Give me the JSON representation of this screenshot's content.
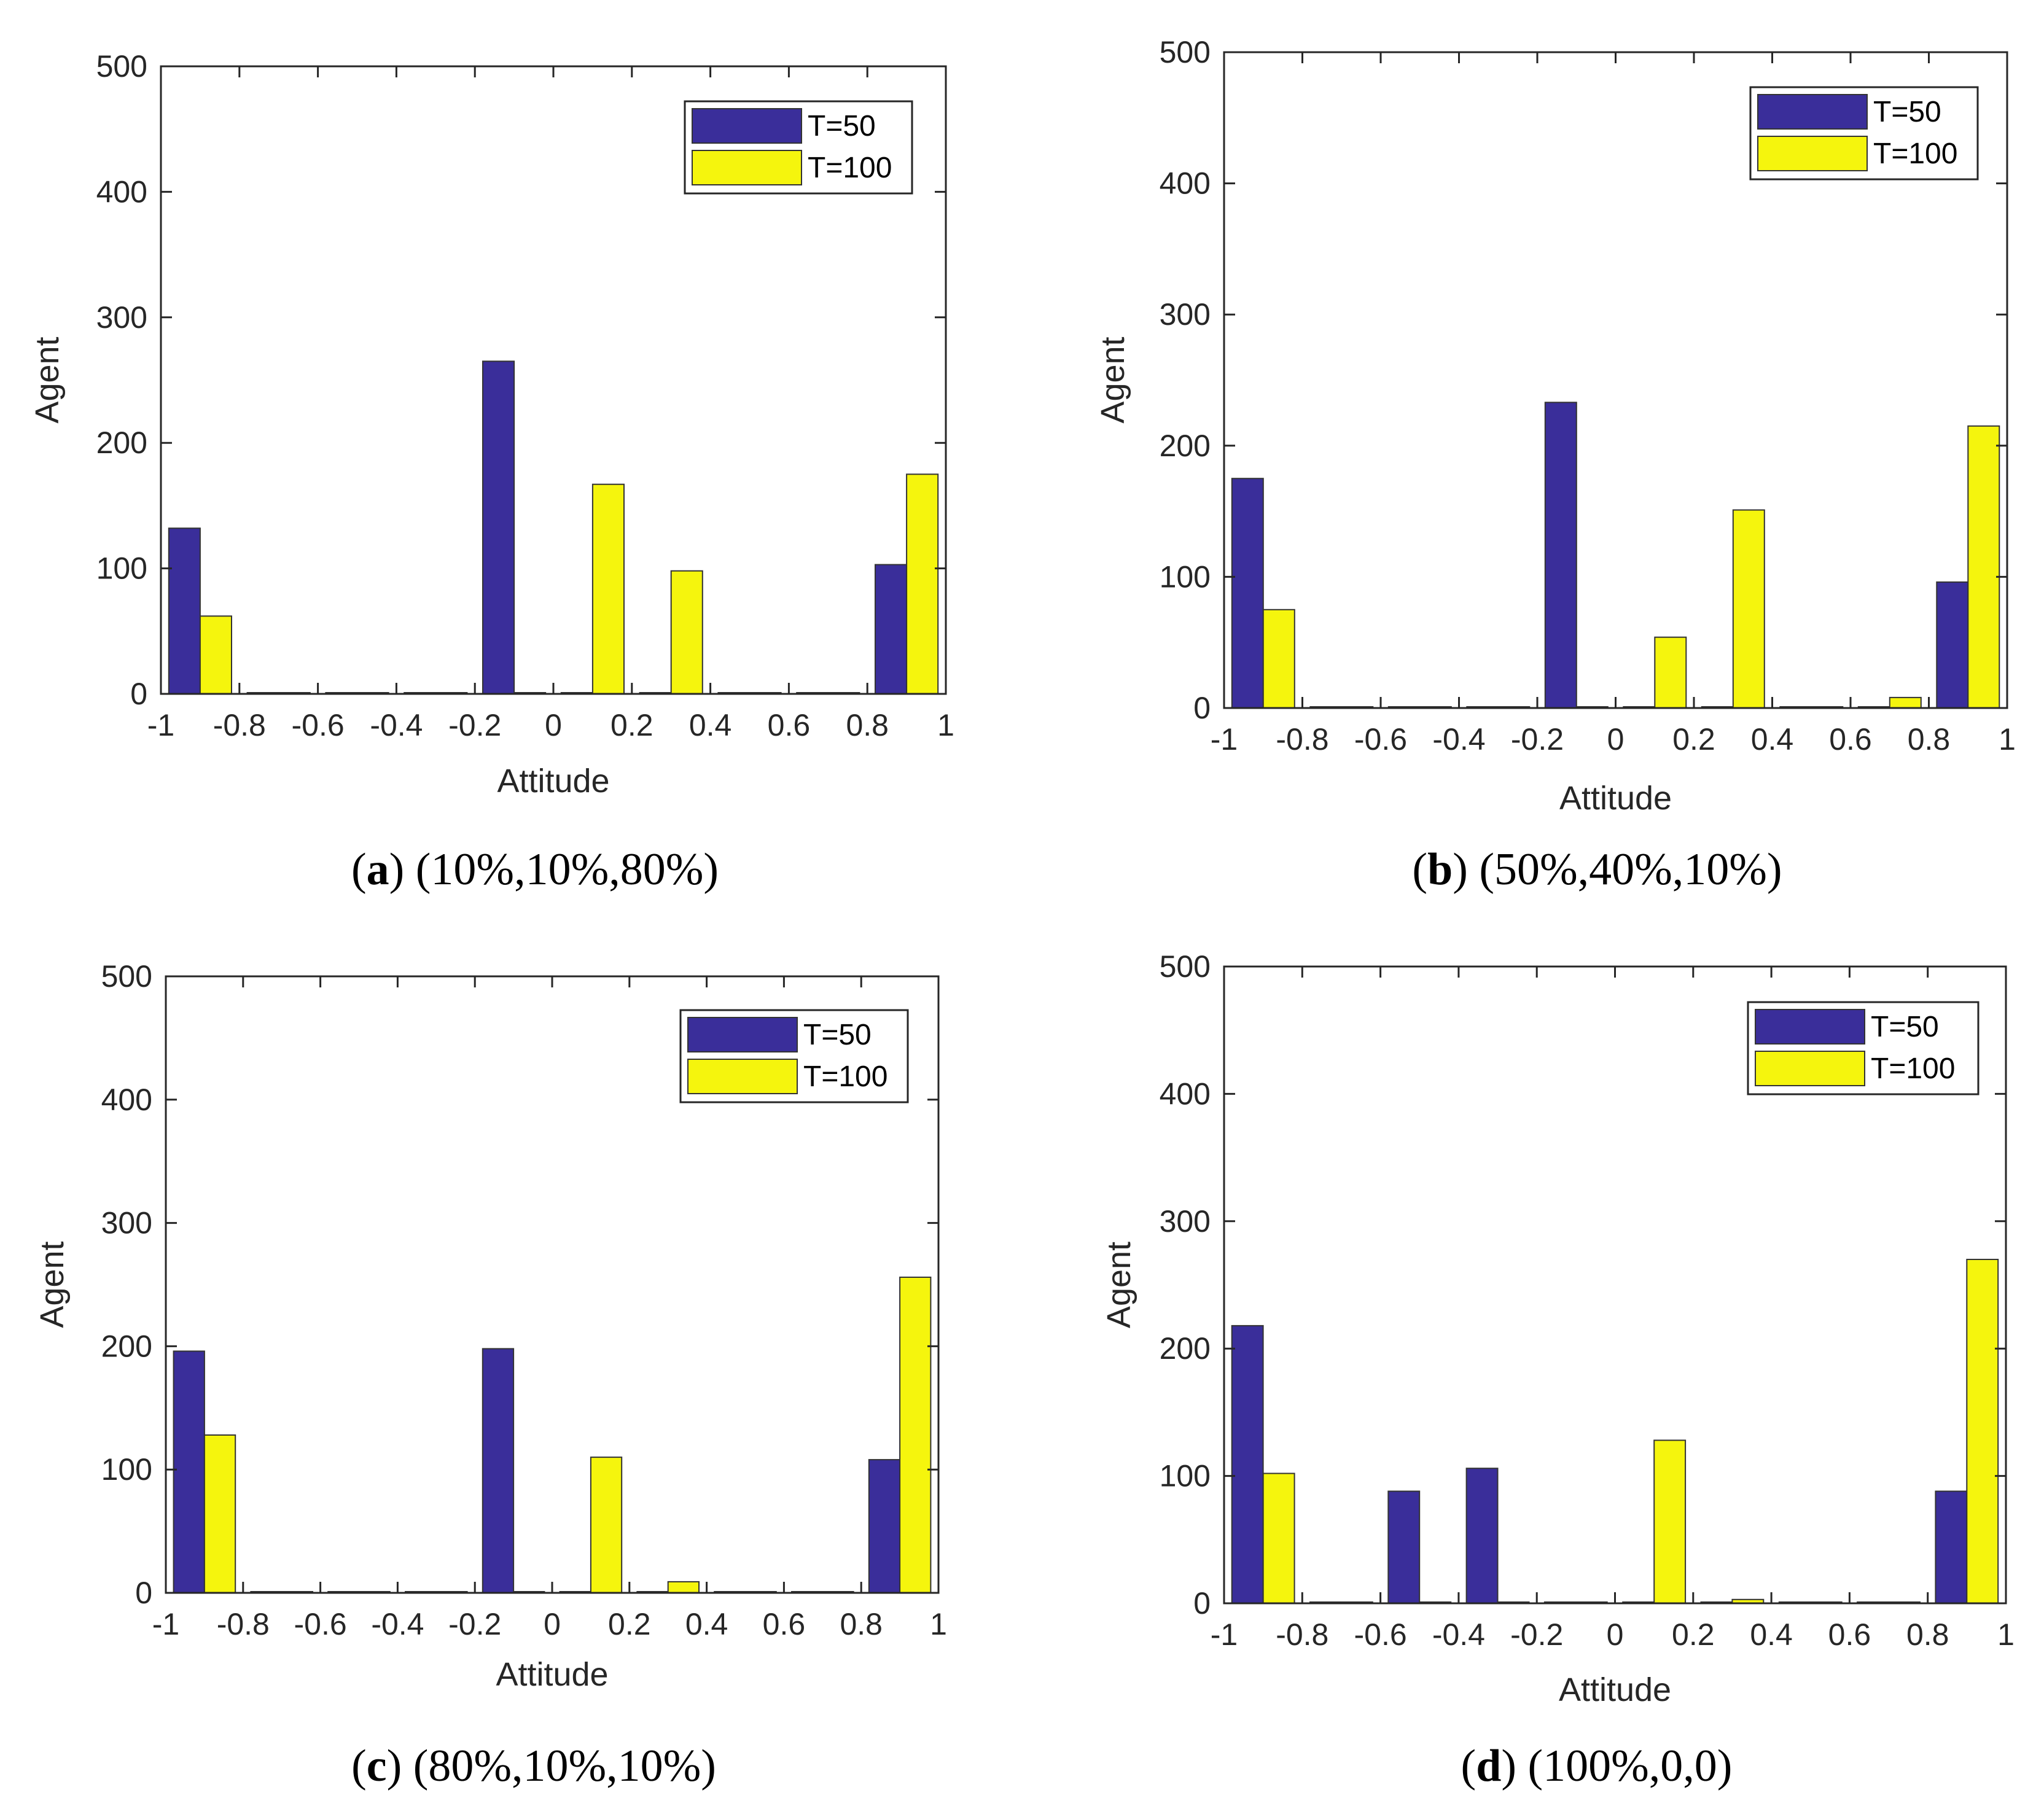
{
  "figure": {
    "colors": {
      "T50": "#3a2e9a",
      "T100": "#f5f50d"
    }
  },
  "chart_data": [
    {
      "type": "bar",
      "panel_letter": "a",
      "caption": "(10%,10%,80%)",
      "xlabel": "Attitude",
      "ylabel": "Agent",
      "xlim": [
        -1,
        1
      ],
      "ylim": [
        0,
        500
      ],
      "xticks": [
        "-1",
        "-0.8",
        "-0.6",
        "-0.4",
        "-0.2",
        "0",
        "0.2",
        "0.4",
        "0.6",
        "0.8",
        "1"
      ],
      "yticks": [
        "0",
        "100",
        "200",
        "300",
        "400",
        "500"
      ],
      "legend_position": "top-right",
      "categories": [
        -0.9,
        -0.7,
        -0.5,
        -0.3,
        -0.1,
        0.1,
        0.3,
        0.5,
        0.7,
        0.9
      ],
      "series": [
        {
          "name": "T=50",
          "values": [
            132,
            0,
            0,
            0,
            265,
            0,
            0,
            0,
            0,
            103
          ]
        },
        {
          "name": "T=100",
          "values": [
            62,
            0,
            0,
            0,
            0,
            167,
            98,
            0,
            0,
            175
          ]
        }
      ]
    },
    {
      "type": "bar",
      "panel_letter": "b",
      "caption": "(50%,40%,10%)",
      "xlabel": "Attitude",
      "ylabel": "Agent",
      "xlim": [
        -1,
        1
      ],
      "ylim": [
        0,
        500
      ],
      "xticks": [
        "-1",
        "-0.8",
        "-0.6",
        "-0.4",
        "-0.2",
        "0",
        "0.2",
        "0.4",
        "0.6",
        "0.8",
        "1"
      ],
      "yticks": [
        "0",
        "100",
        "200",
        "300",
        "400",
        "500"
      ],
      "legend_position": "top-right",
      "categories": [
        -0.9,
        -0.7,
        -0.5,
        -0.3,
        -0.1,
        0.1,
        0.3,
        0.5,
        0.7,
        0.9
      ],
      "series": [
        {
          "name": "T=50",
          "values": [
            175,
            0,
            0,
            0,
            233,
            0,
            0,
            0,
            0,
            96
          ]
        },
        {
          "name": "T=100",
          "values": [
            75,
            0,
            0,
            0,
            0,
            54,
            151,
            0,
            8,
            215
          ]
        }
      ]
    },
    {
      "type": "bar",
      "panel_letter": "c",
      "caption": "(80%,10%,10%)",
      "xlabel": "Attitude",
      "ylabel": "Agent",
      "xlim": [
        -1,
        1
      ],
      "ylim": [
        0,
        500
      ],
      "xticks": [
        "-1",
        "-0.8",
        "-0.6",
        "-0.4",
        "-0.2",
        "0",
        "0.2",
        "0.4",
        "0.6",
        "0.8",
        "1"
      ],
      "yticks": [
        "0",
        "100",
        "200",
        "300",
        "400",
        "500"
      ],
      "legend_position": "top-right",
      "categories": [
        -0.9,
        -0.7,
        -0.5,
        -0.3,
        -0.1,
        0.1,
        0.3,
        0.5,
        0.7,
        0.9
      ],
      "series": [
        {
          "name": "T=50",
          "values": [
            196,
            0,
            0,
            0,
            198,
            0,
            0,
            0,
            0,
            108
          ]
        },
        {
          "name": "T=100",
          "values": [
            128,
            0,
            0,
            0,
            0,
            110,
            9,
            0,
            0,
            256
          ]
        }
      ]
    },
    {
      "type": "bar",
      "panel_letter": "d",
      "caption": "(100%,0,0)",
      "xlabel": "Attitude",
      "ylabel": "Agent",
      "xlim": [
        -1,
        1
      ],
      "ylim": [
        0,
        500
      ],
      "xticks": [
        "-1",
        "-0.8",
        "-0.6",
        "-0.4",
        "-0.2",
        "0",
        "0.2",
        "0.4",
        "0.6",
        "0.8",
        "1"
      ],
      "yticks": [
        "0",
        "100",
        "200",
        "300",
        "400",
        "500"
      ],
      "legend_position": "top-right",
      "categories": [
        -0.9,
        -0.7,
        -0.5,
        -0.3,
        -0.1,
        0.1,
        0.3,
        0.5,
        0.7,
        0.9
      ],
      "series": [
        {
          "name": "T=50",
          "values": [
            218,
            0,
            88,
            106,
            0,
            0,
            0,
            0,
            0,
            88
          ]
        },
        {
          "name": "T=100",
          "values": [
            102,
            0,
            0,
            0,
            0,
            128,
            3,
            0,
            0,
            270
          ]
        }
      ]
    }
  ]
}
